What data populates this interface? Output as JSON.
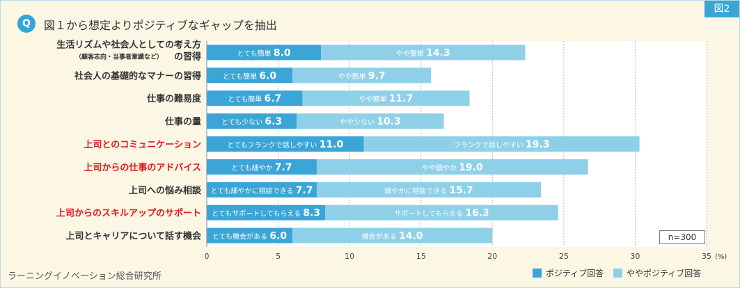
{
  "figure_tag": "図2",
  "q_badge": "Q",
  "title": "図１から想定よりポジティブなギャップを抽出",
  "source": "ラーニングイノベーション総合研究所",
  "sample_size": "n=300",
  "colors": {
    "positive": "#3aa5d6",
    "somewhat": "#8fd0e9",
    "highlight_label": "#e0171f",
    "normal_label": "#333333"
  },
  "chart_data": {
    "type": "bar",
    "orientation": "horizontal",
    "stacked": true,
    "xlim": [
      0,
      35
    ],
    "x_ticks": [
      "0",
      "5",
      "10",
      "15",
      "20",
      "25",
      "30",
      "35"
    ],
    "x_unit": "(%)",
    "grid": true,
    "legend_position": "bottom-right",
    "series": [
      {
        "name": "ポジティブ回答"
      },
      {
        "name": "ややポジティブ回答"
      }
    ],
    "categories": [
      {
        "label": "生活リズムや社会人としての考え方",
        "label2": "の習得",
        "sub": "（顧客志向・当事者意識など）",
        "highlight": false,
        "pos_label": "とても簡単",
        "pos": 8.0,
        "pos_text": "8.0",
        "some_label": "やや簡単",
        "some": 14.3,
        "some_text": "14.3"
      },
      {
        "label": "社会人の基礎的なマナーの習得",
        "highlight": false,
        "pos_label": "とても簡単",
        "pos": 6.0,
        "pos_text": "6.0",
        "some_label": "やや簡単",
        "some": 9.7,
        "some_text": "9.7"
      },
      {
        "label": "仕事の難易度",
        "highlight": false,
        "pos_label": "とても簡単",
        "pos": 6.7,
        "pos_text": "6.7",
        "some_label": "やや簡単",
        "some": 11.7,
        "some_text": "11.7"
      },
      {
        "label": "仕事の量",
        "highlight": false,
        "pos_label": "とても少ない",
        "pos": 6.3,
        "pos_text": "6.3",
        "some_label": "やや少ない",
        "some": 10.3,
        "some_text": "10.3"
      },
      {
        "label": "上司とのコミュニケーション",
        "highlight": true,
        "pos_label": "とてもフランクで話しやすい",
        "pos": 11.0,
        "pos_text": "11.0",
        "some_label": "フランクで話しやすい",
        "some": 19.3,
        "some_text": "19.3"
      },
      {
        "label": "上司からの仕事のアドバイス",
        "highlight": true,
        "pos_label": "とても細やか",
        "pos": 7.7,
        "pos_text": "7.7",
        "some_label": "やや細やか",
        "some": 19.0,
        "some_text": "19.0"
      },
      {
        "label": "上司への悩み相談",
        "highlight": false,
        "pos_label": "とても細やかに相談できる",
        "pos": 7.7,
        "pos_text": "7.7",
        "some_label": "細やかに相談できる",
        "some": 15.7,
        "some_text": "15.7"
      },
      {
        "label": "上司からのスキルアップのサポート",
        "highlight": true,
        "pos_label": "とてもサポートしてもらえる",
        "pos": 8.3,
        "pos_text": "8.3",
        "some_label": "サポートしてもらえる",
        "some": 16.3,
        "some_text": "16.3"
      },
      {
        "label": "上司とキャリアについて話す機会",
        "highlight": false,
        "pos_label": "とても機会がある",
        "pos": 6.0,
        "pos_text": "6.0",
        "some_label": "機会がある",
        "some": 14.0,
        "some_text": "14.0"
      }
    ]
  }
}
